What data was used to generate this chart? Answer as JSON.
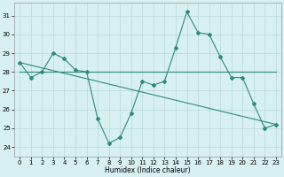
{
  "line1_x": [
    0,
    1,
    2,
    3,
    4,
    5,
    6,
    7,
    8,
    9,
    10,
    11,
    12,
    13,
    14,
    15,
    16,
    17,
    18,
    19,
    20,
    21,
    22,
    23
  ],
  "line1_y": [
    28.5,
    27.7,
    28.0,
    29.0,
    28.7,
    28.1,
    28.0,
    25.5,
    24.2,
    24.5,
    25.8,
    27.5,
    27.3,
    27.5,
    29.3,
    31.2,
    30.1,
    30.0,
    28.8,
    27.7,
    27.7,
    26.3,
    25.0,
    25.2
  ],
  "line2_x": [
    0,
    23
  ],
  "line2_y": [
    28.5,
    25.2
  ],
  "line3_x": [
    0,
    17,
    20,
    23
  ],
  "line3_y": [
    28.0,
    28.0,
    28.0,
    28.0
  ],
  "color": "#2e8b7a",
  "background": "#d8f0f0",
  "xlabel": "Humidex (Indice chaleur)",
  "ylim": [
    23.5,
    31.7
  ],
  "xlim": [
    -0.5,
    23.5
  ],
  "yticks": [
    24,
    25,
    26,
    27,
    28,
    29,
    30,
    31
  ],
  "xticks": [
    0,
    1,
    2,
    3,
    4,
    5,
    6,
    7,
    8,
    9,
    10,
    11,
    12,
    13,
    14,
    15,
    16,
    17,
    18,
    19,
    20,
    21,
    22,
    23
  ],
  "grid_color": "#b8d8d8",
  "marker_size": 2.0,
  "line_width": 0.8
}
